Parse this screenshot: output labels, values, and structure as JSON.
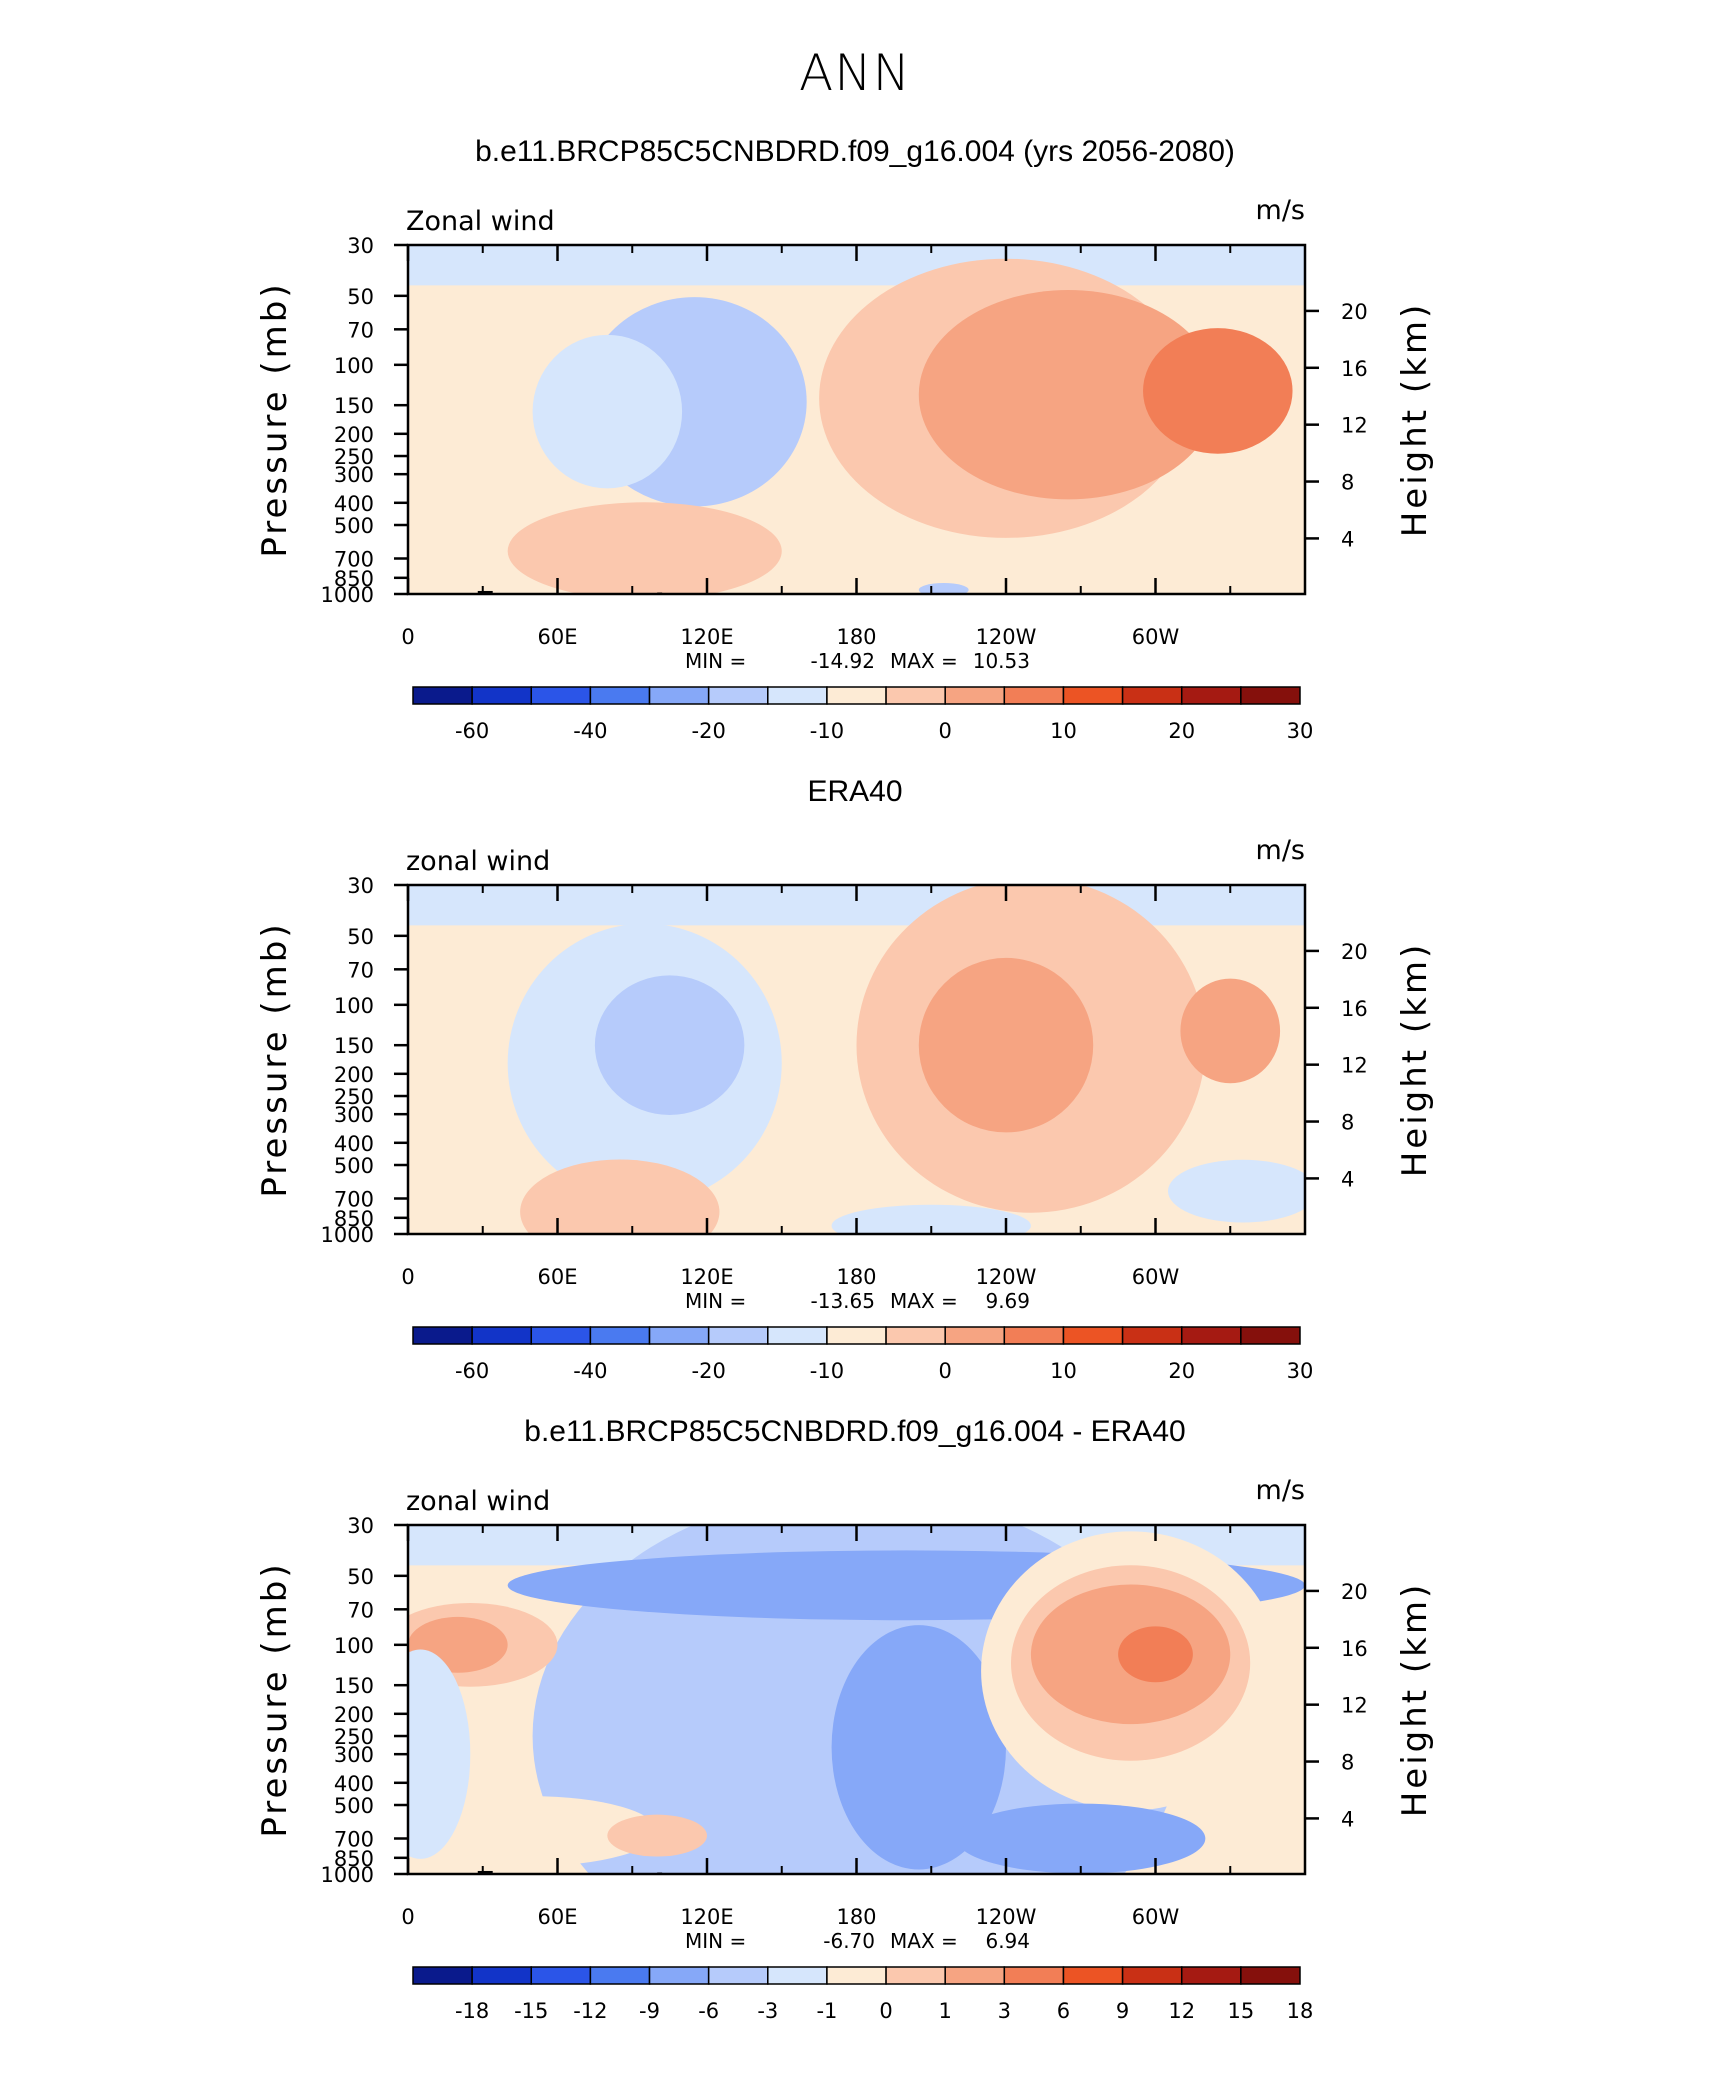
{
  "main_title": "ANN",
  "chart_data": [
    {
      "type": "heatmap",
      "title": "b.e11.BRCP85C5CNBDRD.f09_g16.004 (yrs 2056-2080)",
      "left_label": "Zonal wind",
      "right_label": "m/s",
      "ylabel": "Pressure (mb)",
      "ylabel_right": "Height (km)",
      "x_ticks": [
        "0",
        "60E",
        "120E",
        "180",
        "120W",
        "60W"
      ],
      "x_tick_lon": [
        0,
        60,
        120,
        180,
        240,
        300
      ],
      "x_range": [
        0,
        360
      ],
      "y_ticks": [
        "30",
        "50",
        "70",
        "100",
        "150",
        "200",
        "250",
        "300",
        "400",
        "500",
        "700",
        "850",
        "1000"
      ],
      "y_tick_p": [
        30,
        50,
        70,
        100,
        150,
        200,
        250,
        300,
        400,
        500,
        700,
        850,
        1000
      ],
      "y_range_mb": [
        1000,
        30
      ],
      "height_ticks": [
        "20",
        "16",
        "12",
        "8",
        "4"
      ],
      "height_tick_km": [
        20,
        16,
        12,
        8,
        4
      ],
      "stats": {
        "min_label": "MIN =",
        "min": "-14.92",
        "max_label": "MAX =",
        "max": "10.53"
      },
      "colorbar": {
        "labels": [
          "-60",
          "-40",
          "-20",
          "-10",
          "0",
          "10",
          "20",
          "30"
        ],
        "colors": [
          "#0a1a8c",
          "#1234c8",
          "#2b55e8",
          "#4a7af0",
          "#86a8f8",
          "#b6cbfb",
          "#d6e6fc",
          "#fdebd5",
          "#fbc8ae",
          "#f6a482",
          "#f27e56",
          "#ec5424",
          "#c93015",
          "#a51a12",
          "#85100c"
        ]
      },
      "blobs": [
        {
          "lon": 115,
          "p": 145,
          "rlon": 45,
          "rp": 0.3,
          "level": 5
        },
        {
          "lon": 80,
          "p": 160,
          "rlon": 30,
          "rp": 0.22,
          "level": 6
        },
        {
          "lon": 240,
          "p": 140,
          "rlon": 75,
          "rp": 0.4,
          "level": 8
        },
        {
          "lon": 265,
          "p": 135,
          "rlon": 60,
          "rp": 0.3,
          "level": 9
        },
        {
          "lon": 325,
          "p": 130,
          "rlon": 30,
          "rp": 0.18,
          "level": 10
        },
        {
          "lon": 95,
          "p": 650,
          "rlon": 55,
          "rp": 0.14,
          "level": 8
        },
        {
          "lon": 215,
          "p": 960,
          "rlon": 10,
          "rp": 0.02,
          "level": 5
        }
      ]
    },
    {
      "type": "heatmap",
      "title": "ERA40",
      "left_label": "zonal wind",
      "right_label": "m/s",
      "ylabel": "Pressure (mb)",
      "ylabel_right": "Height (km)",
      "x_ticks": [
        "0",
        "60E",
        "120E",
        "180",
        "120W",
        "60W"
      ],
      "x_tick_lon": [
        0,
        60,
        120,
        180,
        240,
        300
      ],
      "x_range": [
        0,
        360
      ],
      "y_ticks": [
        "30",
        "50",
        "70",
        "100",
        "150",
        "200",
        "250",
        "300",
        "400",
        "500",
        "700",
        "850",
        "1000"
      ],
      "y_tick_p": [
        30,
        50,
        70,
        100,
        150,
        200,
        250,
        300,
        400,
        500,
        700,
        850,
        1000
      ],
      "y_range_mb": [
        1000,
        30
      ],
      "height_ticks": [
        "20",
        "16",
        "12",
        "8",
        "4"
      ],
      "height_tick_km": [
        20,
        16,
        12,
        8,
        4
      ],
      "stats": {
        "min_label": "MIN =",
        "min": "-13.65",
        "max_label": "MAX =",
        "max": "9.69"
      },
      "colorbar": {
        "labels": [
          "-60",
          "-40",
          "-20",
          "-10",
          "0",
          "10",
          "20",
          "30"
        ],
        "colors": [
          "#0a1a8c",
          "#1234c8",
          "#2b55e8",
          "#4a7af0",
          "#86a8f8",
          "#b6cbfb",
          "#d6e6fc",
          "#fdebd5",
          "#fbc8ae",
          "#f6a482",
          "#f27e56",
          "#ec5424",
          "#c93015",
          "#a51a12",
          "#85100c"
        ]
      },
      "blobs": [
        {
          "lon": 95,
          "p": 180,
          "rlon": 55,
          "rp": 0.4,
          "level": 6
        },
        {
          "lon": 105,
          "p": 150,
          "rlon": 30,
          "rp": 0.2,
          "level": 5
        },
        {
          "lon": 250,
          "p": 150,
          "rlon": 70,
          "rp": 0.48,
          "level": 8
        },
        {
          "lon": 240,
          "p": 150,
          "rlon": 35,
          "rp": 0.25,
          "level": 9
        },
        {
          "lon": 330,
          "p": 130,
          "rlon": 20,
          "rp": 0.15,
          "level": 9
        },
        {
          "lon": 85,
          "p": 800,
          "rlon": 40,
          "rp": 0.15,
          "level": 8
        },
        {
          "lon": 210,
          "p": 920,
          "rlon": 40,
          "rp": 0.06,
          "level": 6
        },
        {
          "lon": 335,
          "p": 650,
          "rlon": 30,
          "rp": 0.09,
          "level": 6
        }
      ]
    },
    {
      "type": "heatmap",
      "title": "b.e11.BRCP85C5CNBDRD.f09_g16.004 - ERA40",
      "left_label": "zonal wind",
      "right_label": "m/s",
      "ylabel": "Pressure (mb)",
      "ylabel_right": "Height (km)",
      "x_ticks": [
        "0",
        "60E",
        "120E",
        "180",
        "120W",
        "60W"
      ],
      "x_tick_lon": [
        0,
        60,
        120,
        180,
        240,
        300
      ],
      "x_range": [
        0,
        360
      ],
      "y_ticks": [
        "30",
        "50",
        "70",
        "100",
        "150",
        "200",
        "250",
        "300",
        "400",
        "500",
        "700",
        "850",
        "1000"
      ],
      "y_tick_p": [
        30,
        50,
        70,
        100,
        150,
        200,
        250,
        300,
        400,
        500,
        700,
        850,
        1000
      ],
      "y_range_mb": [
        1000,
        30
      ],
      "height_ticks": [
        "20",
        "16",
        "12",
        "8",
        "4"
      ],
      "height_tick_km": [
        20,
        16,
        12,
        8,
        4
      ],
      "stats": {
        "min_label": "MIN =",
        "min": "-6.70",
        "max_label": "MAX =",
        "max": "6.94"
      },
      "colorbar": {
        "labels": [
          "-18",
          "-15",
          "-12",
          "-9",
          "-6",
          "-3",
          "-1",
          "0",
          "1",
          "3",
          "6",
          "9",
          "12",
          "15",
          "18"
        ],
        "colors": [
          "#0a1a8c",
          "#1234c8",
          "#2b55e8",
          "#4a7af0",
          "#86a8f8",
          "#b6cbfb",
          "#d6e6fc",
          "#fdebd5",
          "#fbc8ae",
          "#f6a482",
          "#f27e56",
          "#ec5424",
          "#c93015",
          "#a51a12",
          "#85100c"
        ]
      },
      "blobs": [
        {
          "lon": 180,
          "p": 250,
          "rlon": 130,
          "rp": 0.7,
          "level": 5
        },
        {
          "lon": 200,
          "p": 55,
          "rlon": 160,
          "rp": 0.1,
          "level": 4
        },
        {
          "lon": 205,
          "p": 280,
          "rlon": 35,
          "rp": 0.35,
          "level": 4
        },
        {
          "lon": 290,
          "p": 130,
          "rlon": 60,
          "rp": 0.4,
          "level": 7
        },
        {
          "lon": 290,
          "p": 120,
          "rlon": 48,
          "rp": 0.28,
          "level": 8
        },
        {
          "lon": 290,
          "p": 110,
          "rlon": 40,
          "rp": 0.2,
          "level": 9
        },
        {
          "lon": 300,
          "p": 110,
          "rlon": 15,
          "rp": 0.08,
          "level": 10
        },
        {
          "lon": 25,
          "p": 100,
          "rlon": 35,
          "rp": 0.12,
          "level": 8
        },
        {
          "lon": 20,
          "p": 100,
          "rlon": 20,
          "rp": 0.08,
          "level": 9
        },
        {
          "lon": 270,
          "p": 700,
          "rlon": 50,
          "rp": 0.1,
          "level": 4
        },
        {
          "lon": 50,
          "p": 650,
          "rlon": 50,
          "rp": 0.1,
          "level": 7
        },
        {
          "lon": 100,
          "p": 680,
          "rlon": 20,
          "rp": 0.06,
          "level": 8
        },
        {
          "lon": 5,
          "p": 300,
          "rlon": 20,
          "rp": 0.3,
          "level": 6
        }
      ]
    }
  ]
}
